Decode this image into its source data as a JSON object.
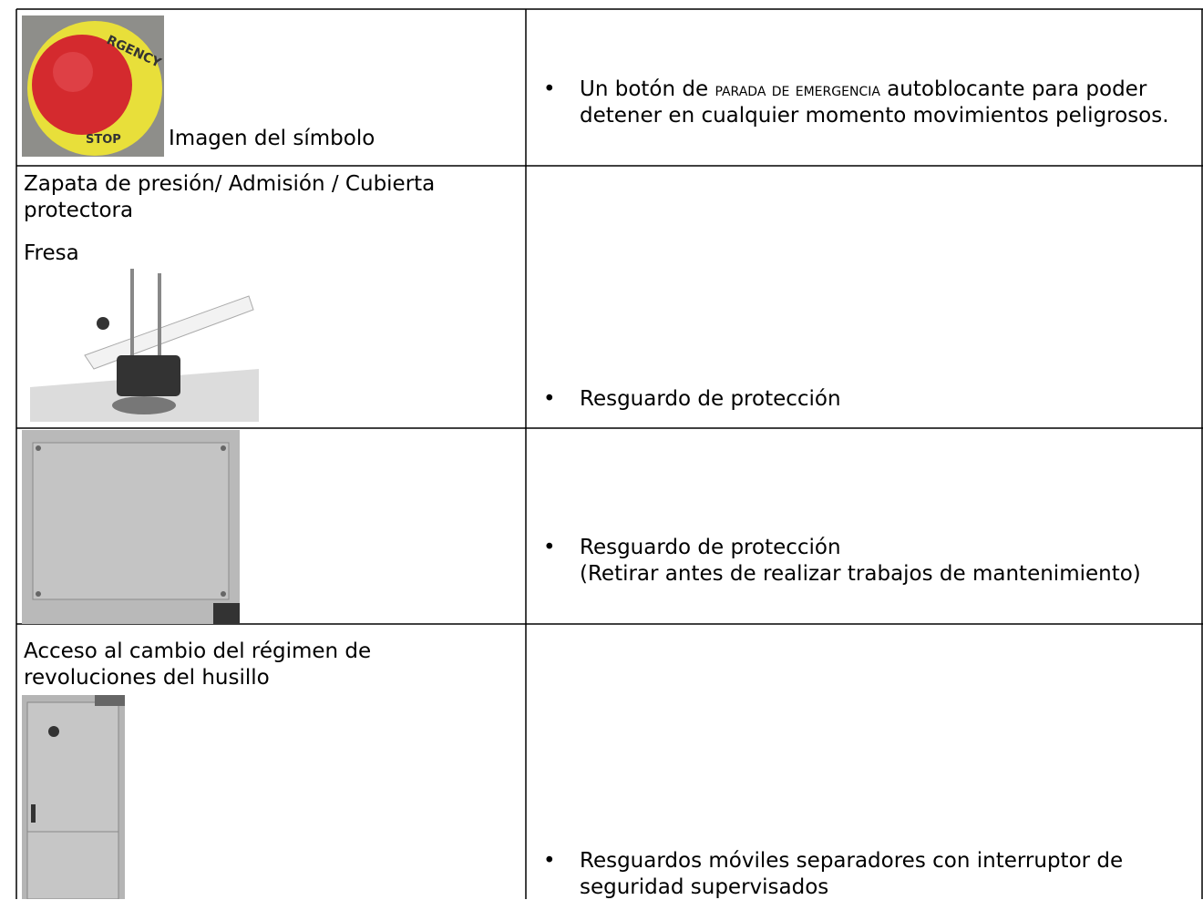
{
  "rows": [
    {
      "left": {
        "caption": "Imagen del símbolo"
      },
      "right": {
        "before": "Un botón de ",
        "smallcaps": "parada de emergencia",
        "after": " autoblocante para poder detener en cualquier momento movimientos peligrosos."
      }
    },
    {
      "left": {
        "title": "Zapata de presión/ Admisión / Cubierta protectora",
        "subtitle": "Fresa"
      },
      "right": {
        "text": "Resguardo de protección"
      }
    },
    {
      "right": {
        "text": "Resguardo de protección",
        "note": "(Retirar antes de realizar trabajos de mantenimiento)"
      }
    },
    {
      "left": {
        "title": "Acceso al cambio del régimen de revoluciones del husillo"
      },
      "right": {
        "text": "Resguardos móviles separadores con interruptor de seguridad supervisados"
      }
    }
  ]
}
